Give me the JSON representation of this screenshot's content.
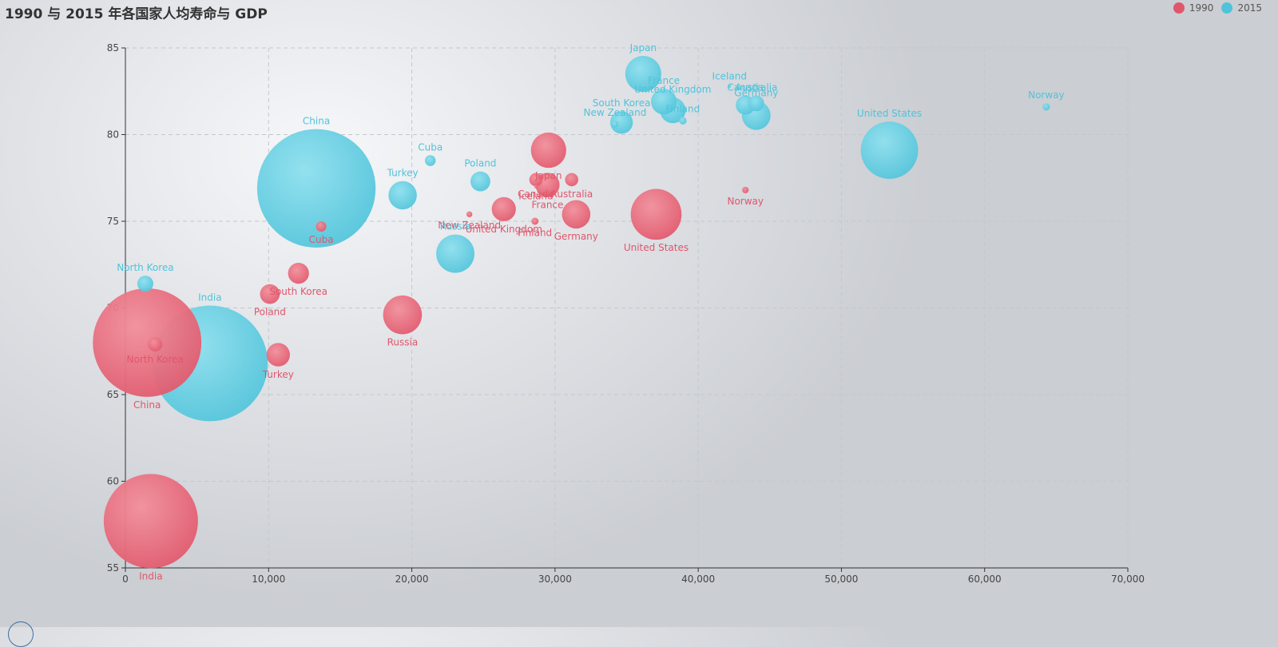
{
  "colors": {
    "s1990": "#e0566a",
    "s2015": "#4fc3da"
  },
  "chart_data": {
    "type": "scatter",
    "title": "1990 与 2015 年各国家人均寿命与 GDP",
    "xlim": [
      0,
      70000
    ],
    "ylim": [
      55,
      85
    ],
    "xticks": [
      0,
      10000,
      20000,
      30000,
      40000,
      50000,
      60000,
      70000
    ],
    "xtick_labels": [
      "0",
      "10,000",
      "20,000",
      "30,000",
      "40,000",
      "50,000",
      "60,000",
      "70,000"
    ],
    "yticks": [
      55,
      60,
      65,
      70,
      75,
      80,
      85
    ],
    "ytick_labels": [
      "55",
      "60",
      "65",
      "70",
      "75",
      "80",
      "85"
    ],
    "grid": true,
    "legend_position": "top-right",
    "series": [
      {
        "name": "1990",
        "color_key": "s1990",
        "label_position": "below",
        "points": [
          {
            "country": "Canada",
            "gdp": 28666,
            "life": 77.4
          },
          {
            "country": "Finland",
            "gdp": 28600,
            "life": 75.0
          },
          {
            "country": "France",
            "gdp": 29476,
            "life": 77.1
          },
          {
            "country": "Germany",
            "gdp": 31476,
            "life": 75.4
          },
          {
            "country": "Iceland",
            "gdp": 28666,
            "life": 77.0
          },
          {
            "country": "India",
            "gdp": 1777,
            "life": 57.7
          },
          {
            "country": "Japan",
            "gdp": 29550,
            "life": 79.1
          },
          {
            "country": "North Korea",
            "gdp": 2076,
            "life": 67.9
          },
          {
            "country": "South Korea",
            "gdp": 12087,
            "life": 72.0
          },
          {
            "country": "New Zealand",
            "gdp": 24021,
            "life": 75.4
          },
          {
            "country": "Norway",
            "gdp": 43296,
            "life": 76.8
          },
          {
            "country": "Poland",
            "gdp": 10088,
            "life": 70.8
          },
          {
            "country": "Russia",
            "gdp": 19349,
            "life": 69.6
          },
          {
            "country": "Turkey",
            "gdp": 10670,
            "life": 67.3
          },
          {
            "country": "United Kingdom",
            "gdp": 26424,
            "life": 75.7
          },
          {
            "country": "United States",
            "gdp": 37062,
            "life": 75.4
          },
          {
            "country": "Australia",
            "gdp": 31163,
            "life": 77.4
          },
          {
            "country": "Cuba",
            "gdp": 13670,
            "life": 74.7
          },
          {
            "country": "China",
            "gdp": 1516,
            "life": 68.0
          }
        ]
      },
      {
        "name": "2015",
        "color_key": "s2015",
        "label_position": "above",
        "points": [
          {
            "country": "Australia",
            "gdp": 44056,
            "life": 81.8
          },
          {
            "country": "Canada",
            "gdp": 43294,
            "life": 81.7
          },
          {
            "country": "China",
            "gdp": 13334,
            "life": 76.9
          },
          {
            "country": "Cuba",
            "gdp": 21291,
            "life": 78.5
          },
          {
            "country": "Finland",
            "gdp": 38923,
            "life": 80.8
          },
          {
            "country": "France",
            "gdp": 37599,
            "life": 81.9
          },
          {
            "country": "Germany",
            "gdp": 44053,
            "life": 81.1
          },
          {
            "country": "Iceland",
            "gdp": 42182,
            "life": 82.8
          },
          {
            "country": "India",
            "gdp": 5903,
            "life": 66.8
          },
          {
            "country": "Japan",
            "gdp": 36162,
            "life": 83.5
          },
          {
            "country": "North Korea",
            "gdp": 1390,
            "life": 71.4
          },
          {
            "country": "South Korea",
            "gdp": 34644,
            "life": 80.7
          },
          {
            "country": "New Zealand",
            "gdp": 34186,
            "life": 80.6
          },
          {
            "country": "Norway",
            "gdp": 64304,
            "life": 81.6
          },
          {
            "country": "Poland",
            "gdp": 24787,
            "life": 77.3
          },
          {
            "country": "Russia",
            "gdp": 23038,
            "life": 73.13
          },
          {
            "country": "Turkey",
            "gdp": 19360,
            "life": 76.5
          },
          {
            "country": "United Kingdom",
            "gdp": 38225,
            "life": 81.4
          },
          {
            "country": "United States",
            "gdp": 53354,
            "life": 79.1
          }
        ]
      }
    ],
    "bubble_size": [
      {
        "series": "1990",
        "country": "Canada",
        "population": 17096869
      },
      {
        "series": "1990",
        "country": "Finland",
        "population": 4986705
      },
      {
        "series": "1990",
        "country": "France",
        "population": 56943299
      },
      {
        "series": "1990",
        "country": "Germany",
        "population": 78958237
      },
      {
        "series": "1990",
        "country": "Iceland",
        "population": 254830
      },
      {
        "series": "1990",
        "country": "India",
        "population": 870601776
      },
      {
        "series": "1990",
        "country": "Japan",
        "population": 122249509
      },
      {
        "series": "1990",
        "country": "North Korea",
        "population": 20194354
      },
      {
        "series": "1990",
        "country": "South Korea",
        "population": 42972254
      },
      {
        "series": "1990",
        "country": "New Zealand",
        "population": 3397534
      },
      {
        "series": "1990",
        "country": "Norway",
        "population": 4240375
      },
      {
        "series": "1990",
        "country": "Poland",
        "population": 38195258
      },
      {
        "series": "1990",
        "country": "Russia",
        "population": 147568552
      },
      {
        "series": "1990",
        "country": "Turkey",
        "population": 53994605
      },
      {
        "series": "1990",
        "country": "United Kingdom",
        "population": 57110117
      },
      {
        "series": "1990",
        "country": "United States",
        "population": 252847810
      },
      {
        "series": "1990",
        "country": "Australia",
        "population": 17096869
      },
      {
        "series": "1990",
        "country": "Cuba",
        "population": 10573814
      },
      {
        "series": "1990",
        "country": "China",
        "population": 1154605773
      },
      {
        "series": "2015",
        "country": "Australia",
        "population": 23968973
      },
      {
        "series": "2015",
        "country": "Canada",
        "population": 35939927
      },
      {
        "series": "2015",
        "country": "China",
        "population": 1376048943
      },
      {
        "series": "2015",
        "country": "Cuba",
        "population": 11389562
      },
      {
        "series": "2015",
        "country": "Finland",
        "population": 5503457
      },
      {
        "series": "2015",
        "country": "France",
        "population": 64395345
      },
      {
        "series": "2015",
        "country": "Germany",
        "population": 80688545
      },
      {
        "series": "2015",
        "country": "Iceland",
        "population": 329425
      },
      {
        "series": "2015",
        "country": "India",
        "population": 1311050527
      },
      {
        "series": "2015",
        "country": "Japan",
        "population": 126573481
      },
      {
        "series": "2015",
        "country": "North Korea",
        "population": 25155317
      },
      {
        "series": "2015",
        "country": "South Korea",
        "population": 50293439
      },
      {
        "series": "2015",
        "country": "New Zealand",
        "population": 4528526
      },
      {
        "series": "2015",
        "country": "Norway",
        "population": 5210967
      },
      {
        "series": "2015",
        "country": "Poland",
        "population": 38611794
      },
      {
        "series": "2015",
        "country": "Russia",
        "population": 143456918
      },
      {
        "series": "2015",
        "country": "Turkey",
        "population": 78665830
      },
      {
        "series": "2015",
        "country": "United Kingdom",
        "population": 64715810
      },
      {
        "series": "2015",
        "country": "United States",
        "population": 321773631
      }
    ]
  }
}
